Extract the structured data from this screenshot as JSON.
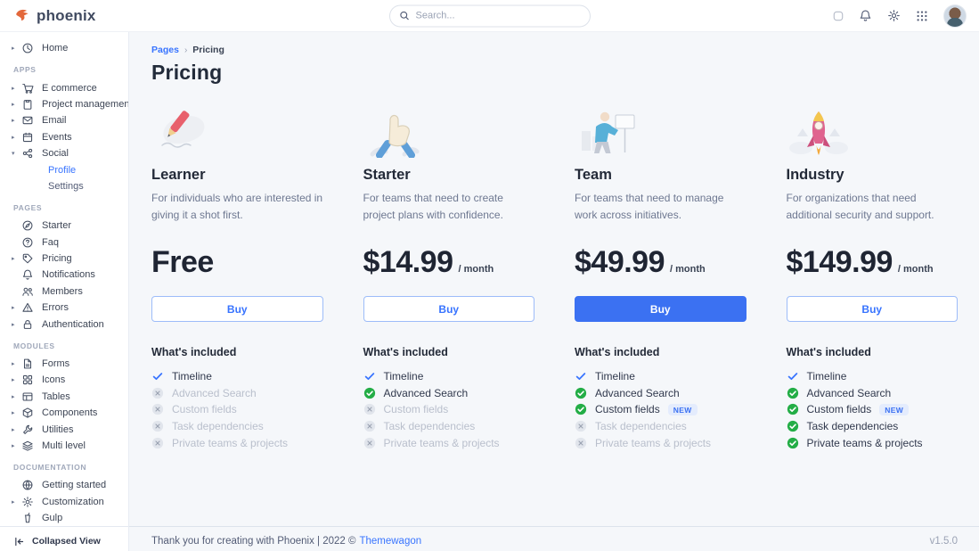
{
  "navbar": {
    "brand": "phoenix",
    "search_placeholder": "Search...",
    "icons": [
      "theme-toggle",
      "bell",
      "gear",
      "apps-grid",
      "avatar"
    ]
  },
  "sidebar": {
    "sections": [
      {
        "label": "",
        "items": [
          {
            "label": "Home",
            "icon": "clock",
            "caret": true
          }
        ]
      },
      {
        "label": "APPS",
        "items": [
          {
            "label": "E commerce",
            "icon": "cart",
            "caret": true
          },
          {
            "label": "Project management",
            "icon": "clipboard",
            "caret": true
          },
          {
            "label": "Email",
            "icon": "envelope",
            "caret": true
          },
          {
            "label": "Events",
            "icon": "calendar",
            "caret": true
          },
          {
            "label": "Social",
            "icon": "share",
            "caret": true,
            "expanded": true,
            "children": [
              {
                "label": "Profile",
                "active": true
              },
              {
                "label": "Settings"
              }
            ]
          }
        ]
      },
      {
        "label": "PAGES",
        "items": [
          {
            "label": "Starter",
            "icon": "compass"
          },
          {
            "label": "Faq",
            "icon": "question"
          },
          {
            "label": "Pricing",
            "icon": "tag",
            "caret": true
          },
          {
            "label": "Notifications",
            "icon": "bell"
          },
          {
            "label": "Members",
            "icon": "users"
          },
          {
            "label": "Errors",
            "icon": "warning",
            "caret": true
          },
          {
            "label": "Authentication",
            "icon": "lock",
            "caret": true
          }
        ]
      },
      {
        "label": "MODULES",
        "items": [
          {
            "label": "Forms",
            "icon": "file",
            "caret": true
          },
          {
            "label": "Icons",
            "icon": "grid",
            "caret": true
          },
          {
            "label": "Tables",
            "icon": "table",
            "caret": true
          },
          {
            "label": "Components",
            "icon": "box",
            "caret": true
          },
          {
            "label": "Utilities",
            "icon": "wrench",
            "caret": true
          },
          {
            "label": "Multi level",
            "icon": "layers",
            "caret": true
          }
        ]
      },
      {
        "label": "DOCUMENTATION",
        "items": [
          {
            "label": "Getting started",
            "icon": "globe"
          },
          {
            "label": "Customization",
            "icon": "gear",
            "caret": true
          },
          {
            "label": "Gulp",
            "icon": "gulp"
          }
        ]
      }
    ],
    "collapse_label": "Collapsed View"
  },
  "breadcrumb": {
    "parent": "Pages",
    "separator": "›",
    "current": "Pricing"
  },
  "page_title": "Pricing",
  "plans": [
    {
      "name": "Learner",
      "description": "For individuals who are interested in giving it a shot first.",
      "price": "Free",
      "period": "",
      "button_label": "Buy",
      "button_variant": "outline",
      "included_title": "What's included",
      "features": [
        {
          "label": "Timeline",
          "state": "check"
        },
        {
          "label": "Advanced Search",
          "state": "off"
        },
        {
          "label": "Custom fields",
          "state": "off"
        },
        {
          "label": "Task dependencies",
          "state": "off"
        },
        {
          "label": "Private teams & projects",
          "state": "off"
        }
      ]
    },
    {
      "name": "Starter",
      "description": "For teams that need to create project plans with confidence.",
      "price": "$14.99",
      "period": "/ month",
      "button_label": "Buy",
      "button_variant": "outline",
      "included_title": "What's included",
      "features": [
        {
          "label": "Timeline",
          "state": "check"
        },
        {
          "label": "Advanced Search",
          "state": "on"
        },
        {
          "label": "Custom fields",
          "state": "off"
        },
        {
          "label": "Task dependencies",
          "state": "off"
        },
        {
          "label": "Private teams & projects",
          "state": "off"
        }
      ]
    },
    {
      "name": "Team",
      "description": "For teams that need to manage work across initiatives.",
      "price": "$49.99",
      "period": "/ month",
      "button_label": "Buy",
      "button_variant": "solid",
      "included_title": "What's included",
      "features": [
        {
          "label": "Timeline",
          "state": "check"
        },
        {
          "label": "Advanced Search",
          "state": "on"
        },
        {
          "label": "Custom fields",
          "state": "on",
          "badge": "NEW"
        },
        {
          "label": "Task dependencies",
          "state": "off"
        },
        {
          "label": "Private teams & projects",
          "state": "off"
        }
      ]
    },
    {
      "name": "Industry",
      "description": "For organizations that need additional security and support.",
      "price": "$149.99",
      "period": "/ month",
      "button_label": "Buy",
      "button_variant": "solid-outline",
      "included_title": "What's included",
      "features": [
        {
          "label": "Timeline",
          "state": "check"
        },
        {
          "label": "Advanced Search",
          "state": "on"
        },
        {
          "label": "Custom fields",
          "state": "on",
          "badge": "NEW"
        },
        {
          "label": "Task dependencies",
          "state": "on"
        },
        {
          "label": "Private teams & projects",
          "state": "on"
        }
      ]
    }
  ],
  "footer": {
    "thanks": "Thank you for creating with Phoenix | 2022 ©",
    "link": "Themewagon",
    "version": "v1.5.0"
  },
  "colors": {
    "primary": "#3874ff",
    "success": "#23ad46",
    "disabled": "#e1e5ec"
  }
}
